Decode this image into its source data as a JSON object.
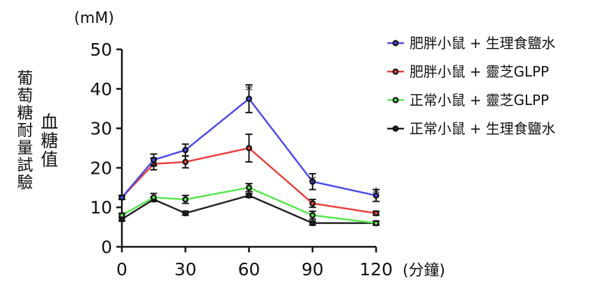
{
  "chart_data": {
    "type": "line",
    "title": "葡萄糖耐量試驗",
    "ylabel": "血糖值",
    "yunit": "(mM)",
    "xlabel": "(分鐘)",
    "x": [
      0,
      15,
      30,
      60,
      90,
      120
    ],
    "xticks": [
      0,
      30,
      60,
      90,
      120
    ],
    "yticks": [
      0,
      10,
      20,
      30,
      40,
      50
    ],
    "xlim": [
      0,
      120
    ],
    "ylim": [
      0,
      50
    ],
    "legend_position": "right",
    "significance_marks": [
      {
        "x": 60,
        "y": 42,
        "text": "*"
      },
      {
        "x": 90,
        "y": 19,
        "text": "*"
      },
      {
        "x": 120,
        "y": 16,
        "text": "*"
      }
    ],
    "series": [
      {
        "name": "肥胖小鼠 + 生理食鹽水",
        "color": "#4a4ae8",
        "values": [
          12.5,
          22,
          24.5,
          37.5,
          16.5,
          13
        ],
        "errors": [
          0.5,
          1.5,
          1.5,
          3.5,
          2,
          1.5
        ]
      },
      {
        "name": "肥胖小鼠 + 靈芝GLPP",
        "color": "#e8403f",
        "values": [
          12.5,
          21,
          21.5,
          25,
          11,
          8.5
        ],
        "errors": [
          0.5,
          1.5,
          1.5,
          3.5,
          1,
          0.5
        ]
      },
      {
        "name": "正常小鼠 + 靈芝GLPP",
        "color": "#55e84a",
        "values": [
          8,
          12.5,
          12,
          15,
          8,
          6
        ],
        "errors": [
          0.5,
          1,
          1,
          1,
          1,
          0.5
        ]
      },
      {
        "name": "正常小鼠 + 生理食鹽水",
        "color": "#222222",
        "values": [
          7,
          12,
          8.5,
          13,
          6,
          6
        ],
        "errors": [
          0.5,
          0.5,
          0.5,
          0.5,
          0.5,
          0.5
        ]
      }
    ]
  }
}
